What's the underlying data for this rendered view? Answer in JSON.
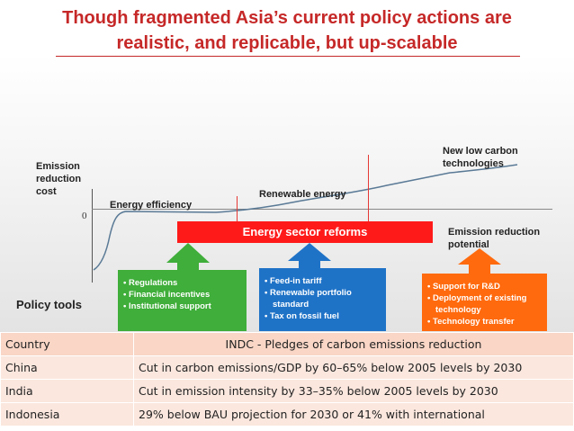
{
  "title": {
    "line1": "Though fragmented Asia’s current policy actions are",
    "line2": "realistic,  and replicable, but up-scalable"
  },
  "diagram": {
    "y_axis_label": [
      "Emission",
      "reduction",
      "cost"
    ],
    "zero_label": "0",
    "segment_labels": {
      "energy_efficiency": "Energy efficiency",
      "renewable_energy": "Renewable energy",
      "new_low_carbon": [
        "New low carbon",
        "technologies"
      ]
    },
    "x_axis_label": [
      "Emission reduction",
      "potential"
    ],
    "reforms_bar": "Energy sector reforms",
    "policy_tools_label": "Policy tools",
    "boxes": [
      {
        "color": "#3fae3a",
        "items": [
          "Regulations",
          "Financial incentives",
          "Institutional support"
        ]
      },
      {
        "color": "#1f73c7",
        "items": [
          "Feed-in tariff",
          "Renewable portfolio standard",
          "Tax on fossil fuel"
        ]
      },
      {
        "color": "#ff6a0e",
        "items": [
          "Support for R&D",
          "Deployment of existing technology",
          "Technology transfer"
        ]
      }
    ],
    "colors": {
      "title": "#c62828",
      "reforms": "#ff1a1a",
      "divider": "#e53935",
      "curve": "#5a7a96"
    }
  },
  "table": {
    "headers": [
      "Country",
      "INDC - Pledges of carbon emissions reduction"
    ],
    "rows": [
      [
        "China",
        "Cut in carbon emissions/GDP by 60–65% below 2005 levels by 2030"
      ],
      [
        "India",
        "Cut in emission intensity by 33–35% below 2005 levels by 2030"
      ],
      [
        "Indonesia",
        "29% below BAU projection for 2030 or 41% with international"
      ]
    ]
  }
}
